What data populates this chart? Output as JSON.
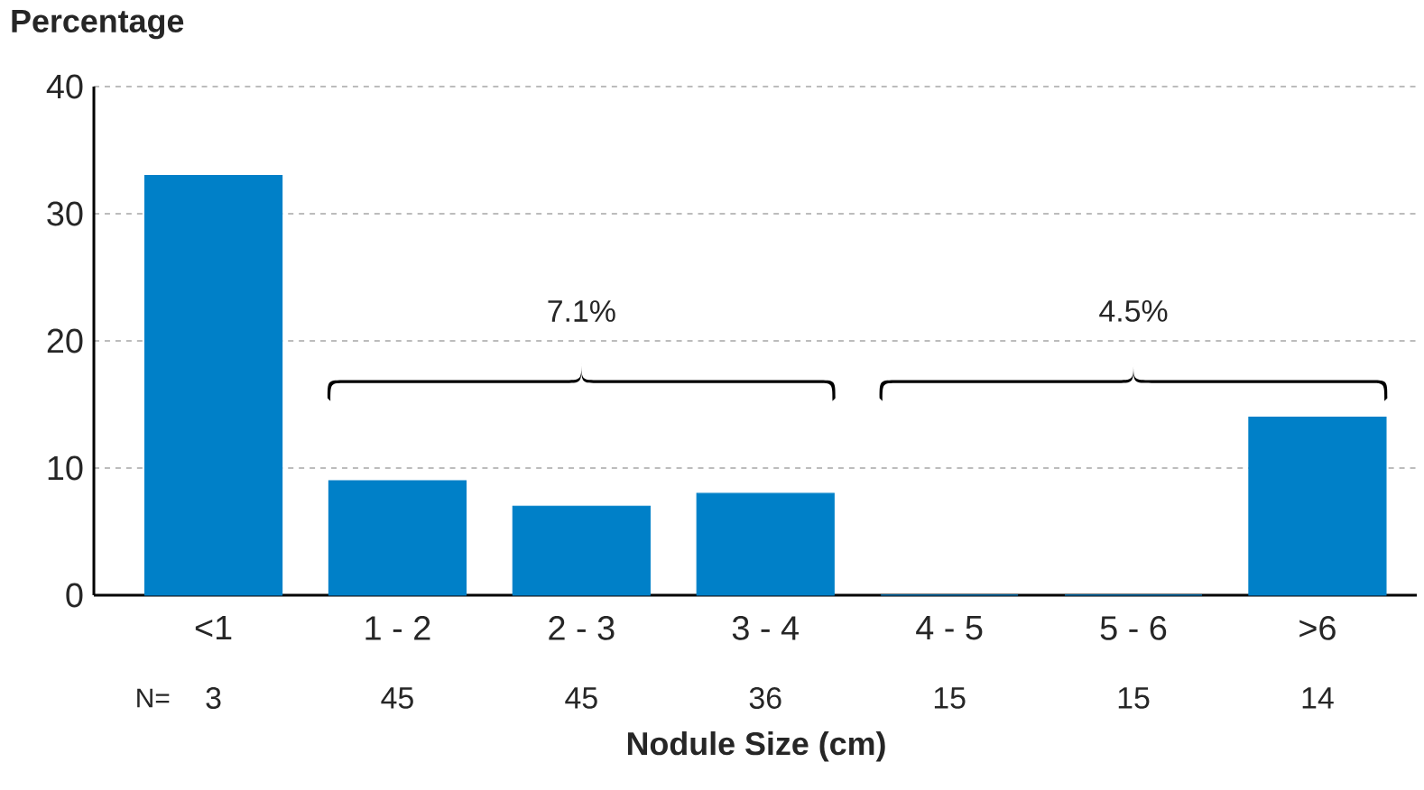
{
  "chart_data": {
    "type": "bar",
    "ylabel": "Percentage",
    "xlabel": "Nodule Size (cm)",
    "categories": [
      "<1",
      "1 - 2",
      "2 - 3",
      "3 - 4",
      "4 - 5",
      "5 - 6",
      ">6"
    ],
    "values": [
      33,
      9,
      7,
      8,
      0,
      0,
      14
    ],
    "color": "#0080c8",
    "ylim": [
      0,
      40
    ],
    "yticks": [
      0,
      10,
      20,
      30,
      40
    ],
    "grid": "y",
    "annotations": [
      "7.1%",
      "4.5%",
      "N=",
      "3",
      "45",
      "45",
      "36",
      "15",
      "15",
      "14"
    ]
  }
}
